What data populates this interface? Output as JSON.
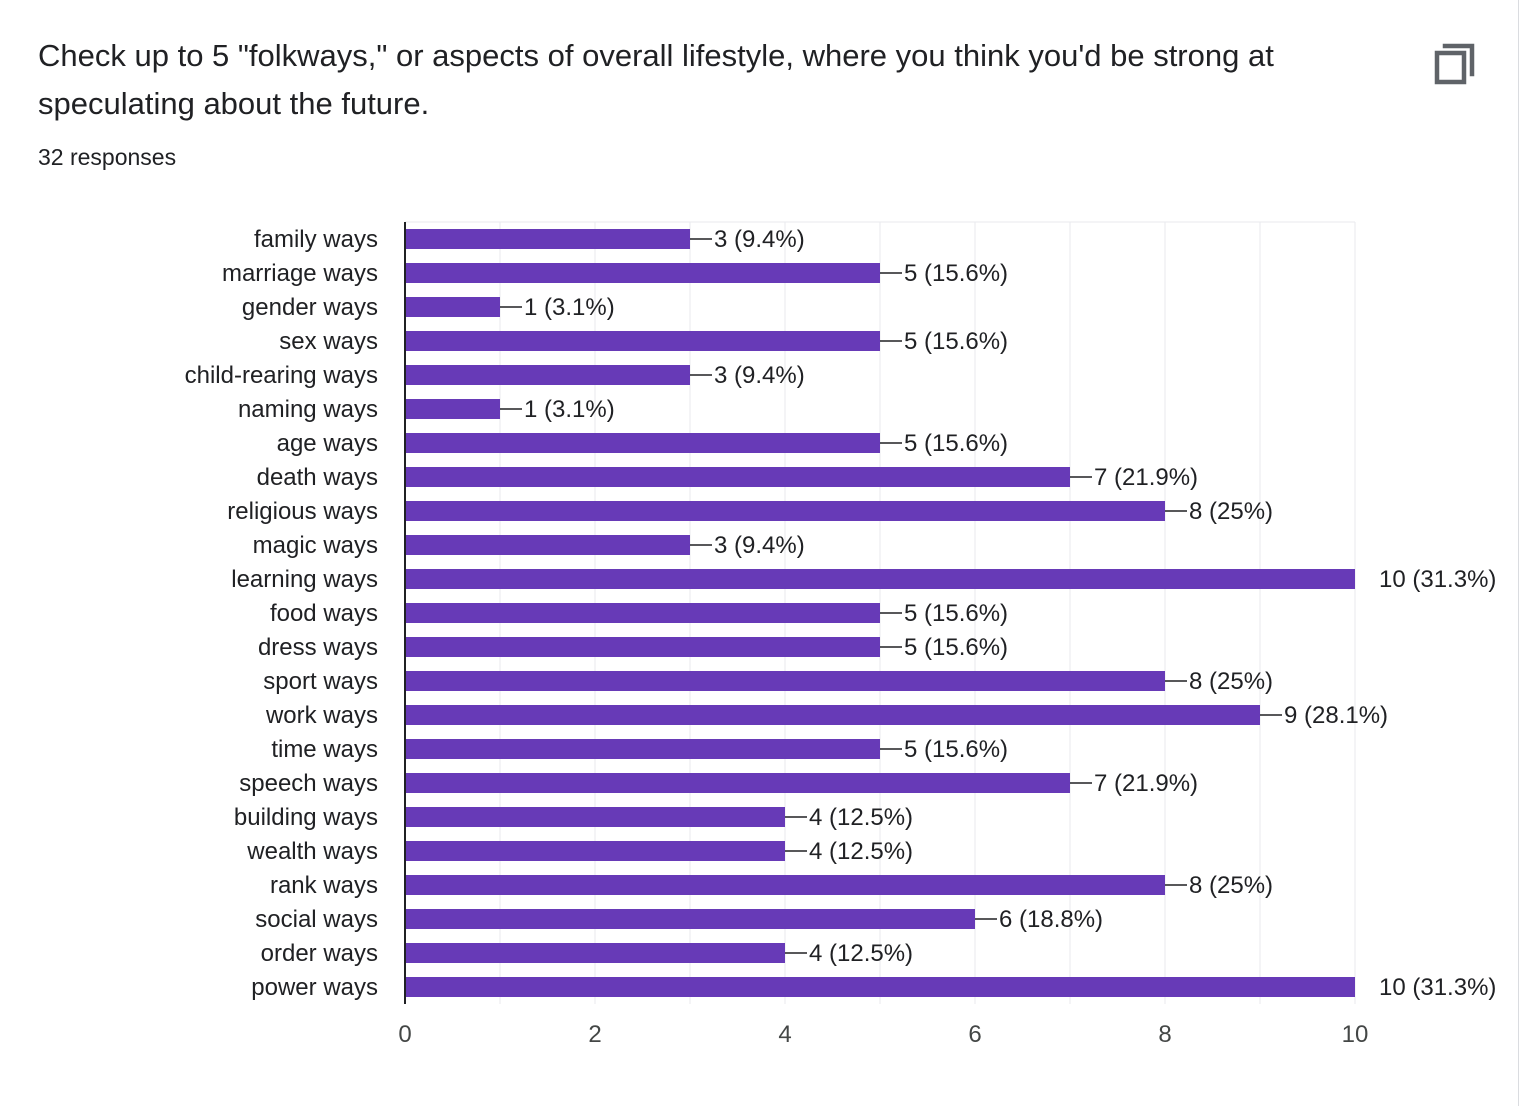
{
  "question": {
    "title": "Check up to 5 \"folkways,\" or aspects of overall lifestyle, where you think you'd be strong at speculating about the future.",
    "responses": "32 responses"
  },
  "icons": {
    "copy": "copy-icon"
  },
  "colors": {
    "bar": "#673ab7",
    "grid": "#e8eaed",
    "axis": "#202124",
    "text": "#202124",
    "tick": "#444746"
  },
  "chart_data": {
    "type": "bar",
    "orientation": "horizontal",
    "categories": [
      "family ways",
      "marriage ways",
      "gender ways",
      "sex ways",
      "child-rearing ways",
      "naming ways",
      "age ways",
      "death ways",
      "religious ways",
      "magic ways",
      "learning ways",
      "food ways",
      "dress ways",
      "sport ways",
      "work ways",
      "time ways",
      "speech ways",
      "building ways",
      "wealth ways",
      "rank ways",
      "social ways",
      "order ways",
      "power ways"
    ],
    "values": [
      3,
      5,
      1,
      5,
      3,
      1,
      5,
      7,
      8,
      3,
      10,
      5,
      5,
      8,
      9,
      5,
      7,
      4,
      4,
      8,
      6,
      4,
      10
    ],
    "data_labels": [
      "3 (9.4%)",
      "5 (15.6%)",
      "1 (3.1%)",
      "5 (15.6%)",
      "3 (9.4%)",
      "1 (3.1%)",
      "5 (15.6%)",
      "7 (21.9%)",
      "8 (25%)",
      "3 (9.4%)",
      "10 (31.3%)",
      "5 (15.6%)",
      "5 (15.6%)",
      "8 (25%)",
      "9 (28.1%)",
      "5 (15.6%)",
      "7 (21.9%)",
      "4 (12.5%)",
      "4 (12.5%)",
      "8 (25%)",
      "6 (18.8%)",
      "4 (12.5%)",
      "10 (31.3%)"
    ],
    "xlim": [
      0,
      10
    ],
    "xticks": [
      "0",
      "2",
      "4",
      "6",
      "8",
      "10"
    ],
    "grid": true,
    "legend": "none"
  }
}
